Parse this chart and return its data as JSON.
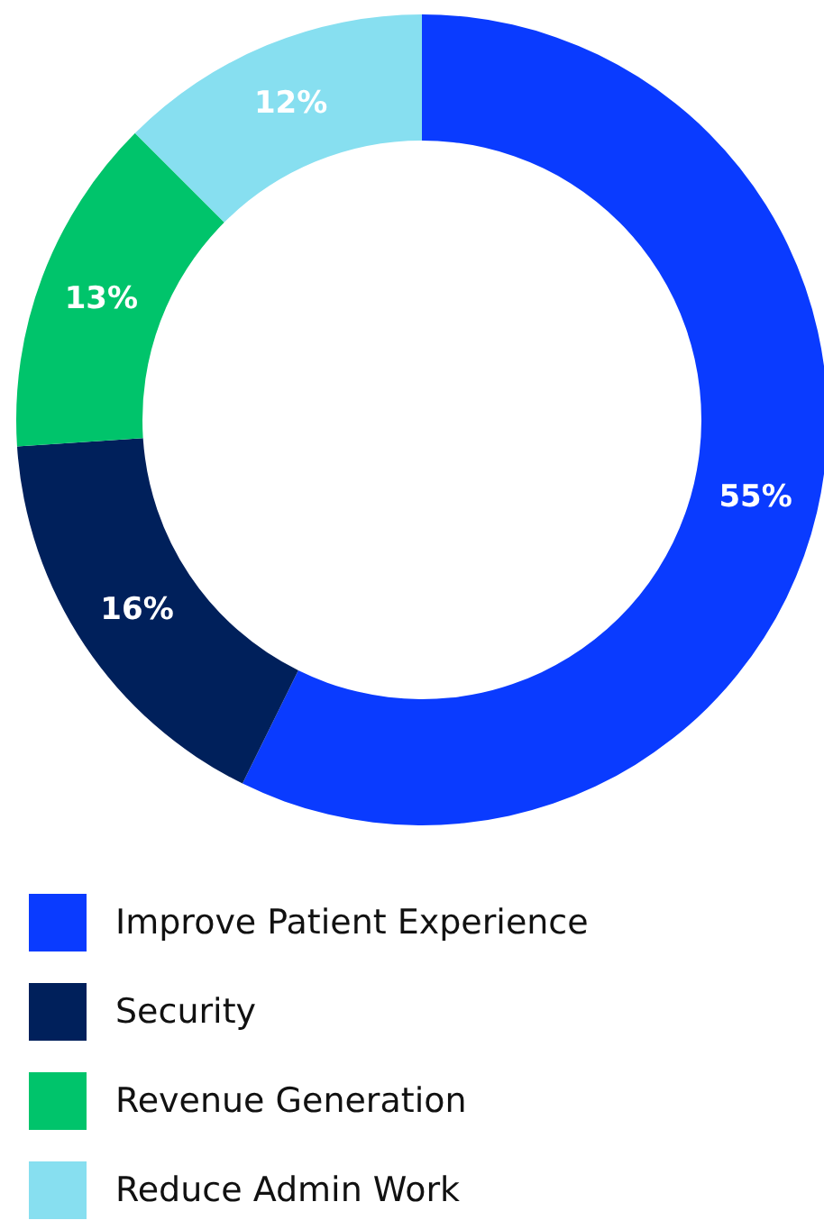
{
  "chart_data": {
    "type": "donut",
    "categories": [
      "Improve Patient Experience",
      "Security",
      "Revenue Generation",
      "Reduce Admin Work"
    ],
    "values": [
      55,
      16,
      13,
      12
    ],
    "colors": [
      "#0a3bff",
      "#00205b",
      "#00c46b",
      "#87dff0"
    ],
    "value_labels": [
      "55%",
      "16%",
      "13%",
      "12%"
    ],
    "legend": "bottom"
  }
}
